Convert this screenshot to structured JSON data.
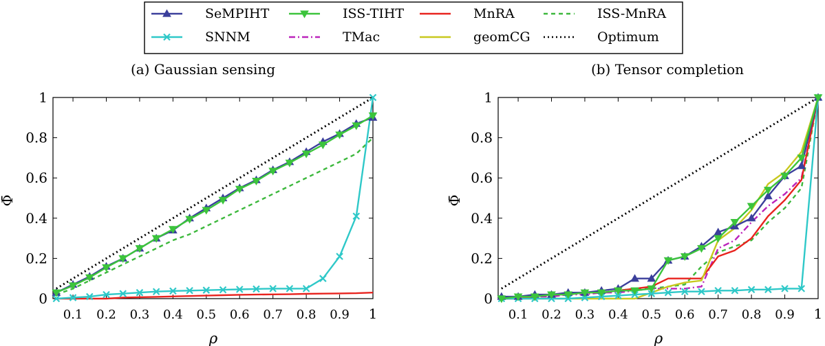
{
  "legend": {
    "entries": [
      {
        "key": "sempiht",
        "label": "SeMPIHT"
      },
      {
        "key": "isstiht",
        "label": "ISS-TIHT"
      },
      {
        "key": "mnra",
        "label": "MnRA"
      },
      {
        "key": "issmnra",
        "label": "ISS-MnRA"
      },
      {
        "key": "snnm",
        "label": "SNNM"
      },
      {
        "key": "tmac",
        "label": "TMac"
      },
      {
        "key": "geomcg",
        "label": "geomCG"
      },
      {
        "key": "optimum",
        "label": "Optimum"
      }
    ]
  },
  "styles": {
    "sempiht": {
      "color": "#3b3f9b",
      "dash": "",
      "marker": "triangle-up"
    },
    "isstiht": {
      "color": "#3cc43c",
      "dash": "",
      "marker": "triangle-down"
    },
    "mnra": {
      "color": "#e8231e",
      "dash": "",
      "marker": "none"
    },
    "issmnra": {
      "color": "#3cb83c",
      "dash": "6,5",
      "marker": "none"
    },
    "snnm": {
      "color": "#2ec8c8",
      "dash": "",
      "marker": "x"
    },
    "tmac": {
      "color": "#bb22bb",
      "dash": "9,4,2,4",
      "marker": "none"
    },
    "geomcg": {
      "color": "#c8c81e",
      "dash": "",
      "marker": "none"
    },
    "optimum": {
      "color": "#000000",
      "dash": "2,4",
      "marker": "none"
    }
  },
  "chart_data": [
    {
      "type": "line",
      "title": "(a) Gaussian sensing",
      "xlabel": "ρ",
      "ylabel": "Φ̄",
      "xlim": [
        0.04,
        1.0
      ],
      "ylim": [
        0,
        1
      ],
      "xticks": [
        "0.1",
        "0.2",
        "0.3",
        "0.4",
        "0.5",
        "0.6",
        "0.7",
        "0.8",
        "0.9",
        "1"
      ],
      "yticks": [
        "0",
        "0.2",
        "0.4",
        "0.6",
        "0.8",
        "1"
      ],
      "x": [
        0.05,
        0.1,
        0.15,
        0.2,
        0.25,
        0.3,
        0.35,
        0.4,
        0.45,
        0.5,
        0.55,
        0.6,
        0.65,
        0.7,
        0.75,
        0.8,
        0.85,
        0.9,
        0.95,
        1.0
      ],
      "series": [
        {
          "key": "optimum",
          "x": [
            0.05,
            1.0
          ],
          "values": [
            0.05,
            1.0
          ]
        },
        {
          "key": "issmnra",
          "values": [
            0.02,
            0.05,
            0.09,
            0.13,
            0.17,
            0.21,
            0.25,
            0.29,
            0.32,
            0.36,
            0.4,
            0.44,
            0.48,
            0.52,
            0.56,
            0.6,
            0.64,
            0.68,
            0.72,
            0.8
          ]
        },
        {
          "key": "mnra",
          "values": [
            0.0,
            0.0,
            0.0,
            0.0,
            0.005,
            0.007,
            0.009,
            0.011,
            0.013,
            0.015,
            0.017,
            0.019,
            0.02,
            0.021,
            0.022,
            0.024,
            0.025,
            0.026,
            0.027,
            0.03
          ]
        },
        {
          "key": "snnm",
          "values": [
            0.0,
            0.005,
            0.01,
            0.02,
            0.025,
            0.03,
            0.035,
            0.038,
            0.04,
            0.042,
            0.044,
            0.046,
            0.048,
            0.05,
            0.05,
            0.05,
            0.1,
            0.21,
            0.41,
            1.0
          ]
        },
        {
          "key": "sempiht",
          "values": [
            0.03,
            0.07,
            0.11,
            0.16,
            0.2,
            0.25,
            0.3,
            0.34,
            0.4,
            0.45,
            0.5,
            0.55,
            0.59,
            0.64,
            0.68,
            0.73,
            0.78,
            0.82,
            0.87,
            0.9
          ]
        },
        {
          "key": "isstiht",
          "values": [
            0.03,
            0.065,
            0.105,
            0.155,
            0.2,
            0.25,
            0.3,
            0.345,
            0.395,
            0.44,
            0.49,
            0.545,
            0.585,
            0.635,
            0.675,
            0.72,
            0.765,
            0.815,
            0.86,
            0.91
          ]
        }
      ]
    },
    {
      "type": "line",
      "title": "(b) Tensor completion",
      "xlabel": "ρ",
      "ylabel": "Φ̄",
      "xlim": [
        0.04,
        1.0
      ],
      "ylim": [
        0,
        1
      ],
      "xticks": [
        "0.1",
        "0.2",
        "0.3",
        "0.4",
        "0.5",
        "0.6",
        "0.7",
        "0.8",
        "0.9",
        "1"
      ],
      "yticks": [
        "0",
        "0.2",
        "0.4",
        "0.6",
        "0.8",
        "1"
      ],
      "x": [
        0.05,
        0.1,
        0.15,
        0.2,
        0.25,
        0.3,
        0.35,
        0.4,
        0.45,
        0.5,
        0.55,
        0.6,
        0.65,
        0.7,
        0.75,
        0.8,
        0.85,
        0.9,
        0.95,
        1.0
      ],
      "series": [
        {
          "key": "optimum",
          "x": [
            0.05,
            1.0
          ],
          "values": [
            0.05,
            1.0
          ]
        },
        {
          "key": "issmnra",
          "values": [
            0.0,
            0.0,
            0.01,
            0.02,
            0.02,
            0.03,
            0.03,
            0.04,
            0.05,
            0.05,
            0.06,
            0.07,
            0.16,
            0.23,
            0.26,
            0.29,
            0.38,
            0.45,
            0.55,
            1.0
          ]
        },
        {
          "key": "tmac",
          "values": [
            0.0,
            0.0,
            0.01,
            0.01,
            0.02,
            0.02,
            0.03,
            0.03,
            0.04,
            0.05,
            0.05,
            0.05,
            0.06,
            0.25,
            0.29,
            0.38,
            0.46,
            0.52,
            0.6,
            1.0
          ]
        },
        {
          "key": "mnra",
          "values": [
            0.0,
            0.0,
            0.01,
            0.02,
            0.02,
            0.03,
            0.03,
            0.04,
            0.05,
            0.06,
            0.1,
            0.1,
            0.1,
            0.21,
            0.24,
            0.3,
            0.41,
            0.49,
            0.59,
            1.0
          ]
        },
        {
          "key": "geomcg",
          "values": [
            0.0,
            0.0,
            0.0,
            0.0,
            0.0,
            0.0,
            0.0,
            0.0,
            0.0,
            0.03,
            0.06,
            0.08,
            0.09,
            0.29,
            0.35,
            0.44,
            0.57,
            0.63,
            0.73,
            1.0
          ]
        },
        {
          "key": "snnm",
          "values": [
            0.0,
            0.0,
            0.0,
            0.0,
            0.0,
            0.005,
            0.01,
            0.015,
            0.02,
            0.025,
            0.03,
            0.035,
            0.035,
            0.04,
            0.04,
            0.045,
            0.045,
            0.05,
            0.05,
            1.0
          ]
        },
        {
          "key": "sempiht",
          "values": [
            0.01,
            0.01,
            0.02,
            0.02,
            0.03,
            0.03,
            0.04,
            0.05,
            0.1,
            0.1,
            0.19,
            0.21,
            0.26,
            0.33,
            0.36,
            0.4,
            0.51,
            0.61,
            0.66,
            1.0
          ]
        },
        {
          "key": "isstiht",
          "values": [
            0.0,
            0.01,
            0.01,
            0.02,
            0.02,
            0.03,
            0.03,
            0.04,
            0.04,
            0.05,
            0.19,
            0.21,
            0.25,
            0.3,
            0.38,
            0.46,
            0.54,
            0.61,
            0.7,
            1.0
          ]
        }
      ]
    }
  ]
}
